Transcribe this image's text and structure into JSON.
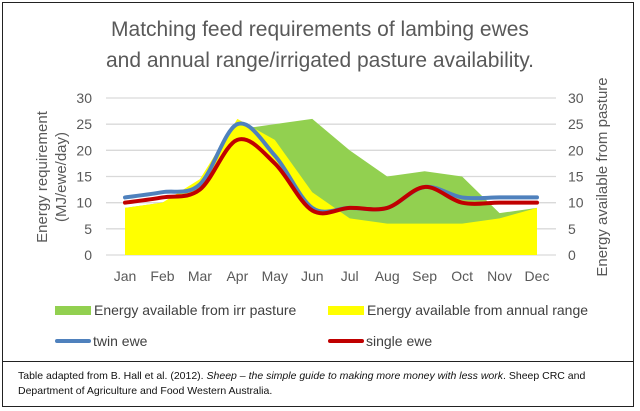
{
  "chart_data": {
    "type": "area+line",
    "title_line1": "Matching feed requirements of lambing ewes",
    "title_line2": "and annual range/irrigated pasture availability.",
    "ylabel_left": "Energy requirement (MJ/ewe/day)",
    "ylabel_left_line1": "Energy requirement",
    "ylabel_left_line2": "(MJ/ewe/day)",
    "ylabel_right": "Energy available from pasture",
    "ylim": [
      0,
      30
    ],
    "yticks": [
      "0",
      "5",
      "10",
      "15",
      "20",
      "25",
      "30"
    ],
    "categories": [
      "Jan",
      "Feb",
      "Mar",
      "Apr",
      "May",
      "Jun",
      "Jul",
      "Aug",
      "Sep",
      "Oct",
      "Nov",
      "Dec"
    ],
    "grid": true,
    "legend_position": "bottom",
    "series": [
      {
        "name": "Energy available from irr pasture",
        "kind": "area",
        "color": "#92D050",
        "values": [
          9,
          10,
          14,
          24,
          25,
          26,
          20,
          15,
          16,
          15,
          8,
          9
        ]
      },
      {
        "name": "Energy available from annual range",
        "kind": "area",
        "color": "#FFFF00",
        "values": [
          9,
          10,
          14.5,
          26,
          22,
          12,
          7,
          6,
          6,
          6,
          7,
          9
        ]
      },
      {
        "name": "twin ewe",
        "kind": "line",
        "color": "#4F81BD",
        "values": [
          11,
          12,
          13.5,
          25,
          19,
          9,
          9,
          9,
          13,
          11,
          11,
          11
        ]
      },
      {
        "name": "single ewe",
        "kind": "line",
        "color": "#C00000",
        "values": [
          10,
          11,
          12.5,
          22,
          17.5,
          8.5,
          9,
          9,
          13,
          10,
          10,
          10
        ]
      }
    ]
  },
  "caption": {
    "before": "Table adapted from B. Hall et al. (2012). ",
    "italic": "Sheep – the simple guide to making more money with less work",
    "after": ". Sheep CRC and Department of Agriculture and Food Western Australia."
  }
}
